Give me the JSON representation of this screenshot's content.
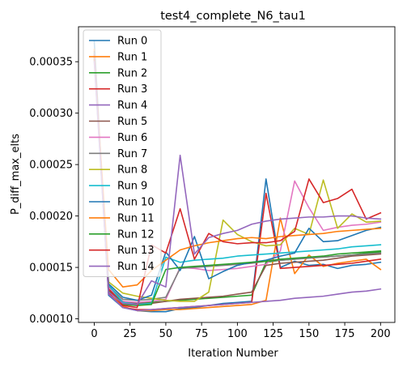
{
  "chart_data": {
    "type": "line",
    "title": "test4_complete_N6_tau1",
    "xlabel": "Iteration Number",
    "ylabel": "P_diff_max_elts",
    "xlim": [
      -11,
      210
    ],
    "ylim": [
      9.65e-05,
      0.000384
    ],
    "xticks": [
      0,
      25,
      50,
      75,
      100,
      125,
      150,
      175,
      200
    ],
    "xtick_labels": [
      "0",
      "25",
      "50",
      "75",
      "100",
      "125",
      "150",
      "175",
      "200"
    ],
    "yticks": [
      0.0001,
      0.00015,
      0.0002,
      0.00025,
      0.0003,
      0.00035
    ],
    "ytick_labels": [
      "0.00010",
      "0.00015",
      "0.00020",
      "0.00025",
      "0.00030",
      "0.00035"
    ],
    "grid": false,
    "legend_position": "upper-left",
    "x": [
      0,
      10,
      20,
      30,
      40,
      50,
      60,
      70,
      80,
      90,
      100,
      110,
      120,
      130,
      140,
      150,
      160,
      170,
      180,
      190,
      200
    ],
    "series": [
      {
        "name": "Run 0",
        "color": "#1f77b4",
        "values": [
          0.00037,
          0.000123,
          0.000111,
          0.000108,
          0.000107,
          0.000107,
          0.00011,
          0.000111,
          0.000113,
          0.000115,
          0.000116,
          0.000117,
          0.000236,
          0.00015,
          0.000156,
          0.000152,
          0.000153,
          0.000149,
          0.000152,
          0.000153,
          0.000155
        ]
      },
      {
        "name": "Run 1",
        "color": "#ff7f0e",
        "values": [
          0.000362,
          0.000128,
          0.000112,
          0.000108,
          0.000108,
          0.000109,
          0.000109,
          0.00011,
          0.000111,
          0.000112,
          0.000113,
          0.000114,
          0.000118,
          0.000198,
          0.000144,
          0.000162,
          0.000151,
          0.000154,
          0.000156,
          0.000158,
          0.000148
        ]
      },
      {
        "name": "Run 2",
        "color": "#2ca02c",
        "values": [
          0.000355,
          0.000128,
          0.000116,
          0.000115,
          0.000116,
          0.000117,
          0.000118,
          0.000119,
          0.00012,
          0.000121,
          0.000122,
          0.000123,
          0.000155,
          0.000157,
          0.000158,
          0.00016,
          0.00016,
          0.000161,
          0.000162,
          0.000164,
          0.000165
        ]
      },
      {
        "name": "Run 3",
        "color": "#d62728",
        "values": [
          0.000358,
          0.000125,
          0.000111,
          0.000109,
          0.000109,
          0.00011,
          0.000111,
          0.000112,
          0.000113,
          0.000114,
          0.000115,
          0.000116,
          0.000222,
          0.000149,
          0.00015,
          0.000151,
          0.000152,
          0.000153,
          0.000154,
          0.000156,
          0.000158
        ]
      },
      {
        "name": "Run 4",
        "color": "#9467bd",
        "values": [
          0.000353,
          0.000124,
          0.000111,
          0.000108,
          0.000109,
          0.00011,
          0.000111,
          0.000112,
          0.000113,
          0.000114,
          0.000115,
          0.000116,
          0.000117,
          0.000118,
          0.00012,
          0.000121,
          0.000122,
          0.000124,
          0.000126,
          0.000127,
          0.000129
        ]
      },
      {
        "name": "Run 5",
        "color": "#8c564b",
        "values": [
          0.00036,
          0.000129,
          0.000117,
          0.000115,
          0.000115,
          0.000117,
          0.000119,
          0.00012,
          0.000121,
          0.000122,
          0.000124,
          0.000126,
          0.000152,
          0.000154,
          0.000155,
          0.000156,
          0.000157,
          0.000159,
          0.000161,
          0.000162,
          0.000163
        ]
      },
      {
        "name": "Run 6",
        "color": "#e377c2",
        "values": [
          0.000357,
          0.000131,
          0.000117,
          0.000116,
          0.000117,
          0.000119,
          0.00015,
          0.000149,
          0.000147,
          0.000148,
          0.000149,
          0.000151,
          0.000153,
          0.000166,
          0.000234,
          0.000208,
          0.000186,
          0.000189,
          0.000191,
          0.000192,
          0.000194
        ]
      },
      {
        "name": "Run 7",
        "color": "#7f7f7f",
        "values": [
          0.000356,
          0.000132,
          0.000119,
          0.000118,
          0.000119,
          0.000121,
          0.000149,
          0.00015,
          0.000151,
          0.000152,
          0.000153,
          0.000154,
          0.000156,
          0.000157,
          0.000158,
          0.000159,
          0.00016,
          0.000161,
          0.000162,
          0.000163,
          0.000164
        ]
      },
      {
        "name": "Run 8",
        "color": "#bcbd22",
        "values": [
          0.000351,
          0.000136,
          0.000125,
          0.000122,
          0.00012,
          0.000118,
          0.000117,
          0.000117,
          0.000126,
          0.000196,
          0.000182,
          0.000175,
          0.000171,
          0.000172,
          0.000188,
          0.000182,
          0.000235,
          0.000188,
          0.000202,
          0.000194,
          0.000195
        ]
      },
      {
        "name": "Run 9",
        "color": "#17becf",
        "values": [
          0.000358,
          0.000133,
          0.000116,
          0.000114,
          0.000115,
          0.00016,
          0.000155,
          0.000157,
          0.000158,
          0.000159,
          0.000161,
          0.000162,
          0.000163,
          0.000164,
          0.000165,
          0.000166,
          0.000167,
          0.000168,
          0.00017,
          0.000171,
          0.000172
        ]
      },
      {
        "name": "Run 10",
        "color": "#1f77b4",
        "values": [
          0.000354,
          0.000134,
          0.000121,
          0.000118,
          0.000123,
          0.000165,
          0.000147,
          0.00018,
          0.000139,
          0.000146,
          0.000152,
          0.000155,
          0.000157,
          0.000161,
          0.000164,
          0.000188,
          0.000175,
          0.000176,
          0.000181,
          0.000186,
          0.000189
        ]
      },
      {
        "name": "Run 11",
        "color": "#ff7f0e",
        "values": [
          0.000352,
          0.000148,
          0.000131,
          0.000133,
          0.000147,
          0.000157,
          0.000167,
          0.000171,
          0.000174,
          0.000176,
          0.000178,
          0.000179,
          0.000178,
          0.00018,
          0.000181,
          0.000182,
          0.000183,
          0.000185,
          0.000186,
          0.000187,
          0.000188
        ]
      },
      {
        "name": "Run 12",
        "color": "#2ca02c",
        "values": [
          0.000354,
          0.000127,
          0.000114,
          0.000113,
          0.000114,
          0.000148,
          0.00015,
          0.000151,
          0.000152,
          0.000153,
          0.000154,
          0.000155,
          0.000156,
          0.000158,
          0.000159,
          0.00016,
          0.000161,
          0.000163,
          0.000164,
          0.000165,
          0.000166
        ]
      },
      {
        "name": "Run 13",
        "color": "#d62728",
        "values": [
          0.000357,
          0.000129,
          0.000113,
          0.000111,
          0.000172,
          0.000164,
          0.000207,
          0.000158,
          0.000183,
          0.000175,
          0.000173,
          0.000174,
          0.000174,
          0.000176,
          0.000185,
          0.000236,
          0.000213,
          0.000217,
          0.000226,
          0.000197,
          0.000203
        ]
      },
      {
        "name": "Run 14",
        "color": "#9467bd",
        "values": [
          0.00035,
          0.000126,
          0.000115,
          0.000114,
          0.000137,
          0.000131,
          0.000259,
          0.000163,
          0.000179,
          0.000183,
          0.000186,
          0.000192,
          0.000195,
          0.000197,
          0.000198,
          0.000199,
          0.000199,
          0.0002,
          0.0002,
          0.000198,
          0.000197
        ]
      }
    ]
  }
}
